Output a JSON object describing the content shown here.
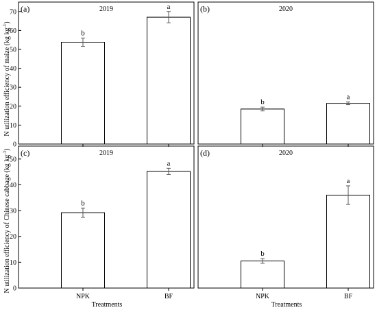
{
  "chart_data": [
    {
      "type": "bar",
      "panel_label": "(a)",
      "title": "2019",
      "categories": [
        "NPK",
        "BF"
      ],
      "values": [
        53.8,
        67.0
      ],
      "errors": [
        2.2,
        3.0
      ],
      "significance": [
        "b",
        "a"
      ],
      "ylim": [
        0,
        75
      ],
      "yticks": [
        0,
        10,
        20,
        30,
        40,
        50,
        60,
        70
      ],
      "show_xticklabels": false
    },
    {
      "type": "bar",
      "panel_label": "(b)",
      "title": "2020",
      "categories": [
        "NPK",
        "BF"
      ],
      "values": [
        18.5,
        21.5
      ],
      "errors": [
        1.0,
        0.7
      ],
      "significance": [
        "b",
        "a"
      ],
      "ylim": [
        0,
        75
      ],
      "yticks": [],
      "show_xticklabels": false
    },
    {
      "type": "bar",
      "panel_label": "(c)",
      "title": "2019",
      "categories": [
        "NPK",
        "BF"
      ],
      "values": [
        29.2,
        45.2
      ],
      "errors": [
        1.8,
        1.2
      ],
      "significance": [
        "b",
        "a"
      ],
      "ylim": [
        0,
        55
      ],
      "yticks": [
        0,
        10,
        20,
        30,
        40,
        50
      ],
      "show_xticklabels": true
    },
    {
      "type": "bar",
      "panel_label": "(d)",
      "title": "2020",
      "categories": [
        "NPK",
        "BF"
      ],
      "values": [
        10.5,
        36.0
      ],
      "errors": [
        0.9,
        3.6
      ],
      "significance": [
        "b",
        "a"
      ],
      "ylim": [
        0,
        55
      ],
      "yticks": [],
      "show_xticklabels": true
    }
  ],
  "labels": {
    "ylabel_top": "N utilization efficiency of maize (kg kg",
    "ylabel_bottom": "N utilization efficiency of Chinese cabbage (kg kg",
    "ylabel_sup": "-1",
    "ylabel_close": ")",
    "xlabel": "Treatments"
  }
}
